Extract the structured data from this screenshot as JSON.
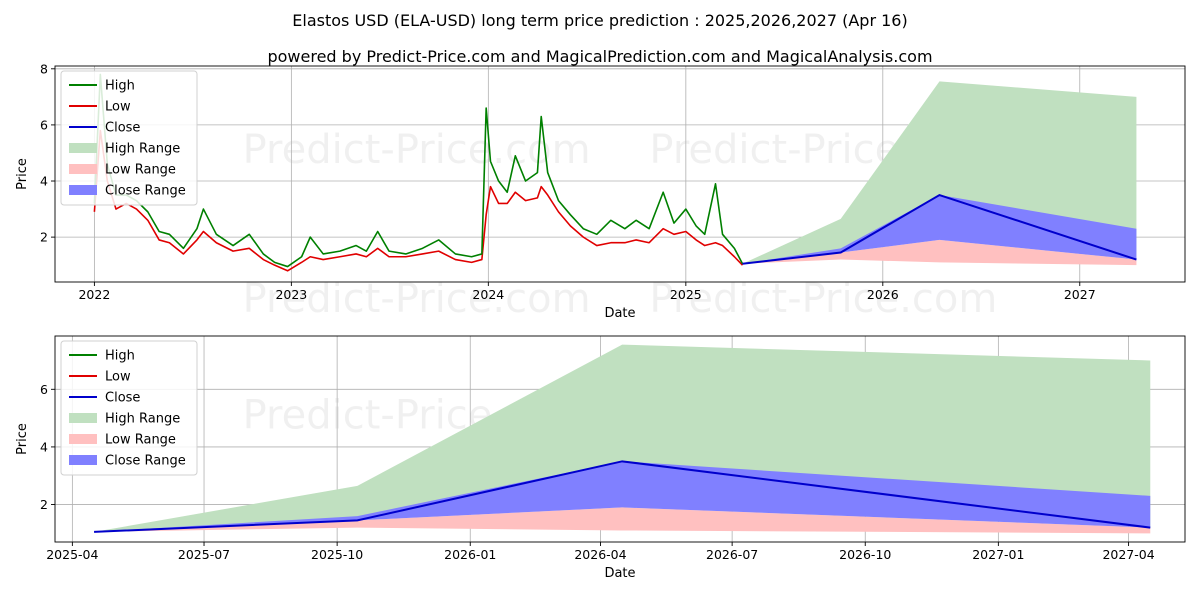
{
  "header": {
    "title": "Elastos USD (ELA-USD) long term price prediction : 2025,2026,2027 (Apr 16)",
    "subtitle": "powered by Predict-Price.com and MagicalPrediction.com and MagicalAnalysis.com"
  },
  "watermark": "Predict-Price.com",
  "colors": {
    "high": "#008000",
    "low": "#e00000",
    "close": "#0000cc",
    "high_range": "#c0e0c0",
    "low_range": "#ffc0c0",
    "close_range": "#8080ff",
    "grid": "#b0b0b0"
  },
  "chart_data": [
    {
      "type": "line",
      "xlabel": "Date",
      "ylabel": "Price",
      "xlim": [
        "2021-10-20",
        "2027-07-15"
      ],
      "ylim": [
        0.4,
        8.1
      ],
      "xticks": [
        {
          "date": "2022-01-01",
          "label": "2022"
        },
        {
          "date": "2023-01-01",
          "label": "2023"
        },
        {
          "date": "2024-01-01",
          "label": "2024"
        },
        {
          "date": "2025-01-01",
          "label": "2025"
        },
        {
          "date": "2026-01-01",
          "label": "2026"
        },
        {
          "date": "2027-01-01",
          "label": "2027"
        }
      ],
      "yticks": [
        2,
        4,
        6,
        8
      ],
      "grid": true,
      "legend": {
        "placement": "top-left",
        "entries": [
          {
            "label": "High",
            "kind": "line",
            "series": "high"
          },
          {
            "label": "Low",
            "kind": "line",
            "series": "low"
          },
          {
            "label": "Close",
            "kind": "line",
            "series": "close"
          },
          {
            "label": "High Range",
            "kind": "patch",
            "series": "high_range"
          },
          {
            "label": "Low Range",
            "kind": "patch",
            "series": "low_range"
          },
          {
            "label": "Close Range",
            "kind": "patch",
            "series": "close_range"
          }
        ]
      },
      "historical": {
        "high": [
          [
            "2022-01-01",
            3.2
          ],
          [
            "2022-01-12",
            7.8
          ],
          [
            "2022-01-25",
            4.6
          ],
          [
            "2022-02-10",
            3.5
          ],
          [
            "2022-03-01",
            3.5
          ],
          [
            "2022-03-20",
            3.3
          ],
          [
            "2022-04-10",
            2.9
          ],
          [
            "2022-05-01",
            2.2
          ],
          [
            "2022-05-20",
            2.1
          ],
          [
            "2022-06-15",
            1.6
          ],
          [
            "2022-07-10",
            2.3
          ],
          [
            "2022-07-22",
            3.0
          ],
          [
            "2022-08-15",
            2.1
          ],
          [
            "2022-09-15",
            1.7
          ],
          [
            "2022-10-15",
            2.1
          ],
          [
            "2022-11-10",
            1.4
          ],
          [
            "2022-12-01",
            1.1
          ],
          [
            "2022-12-25",
            0.95
          ],
          [
            "2023-01-20",
            1.3
          ],
          [
            "2023-02-05",
            2.0
          ],
          [
            "2023-03-01",
            1.4
          ],
          [
            "2023-04-01",
            1.5
          ],
          [
            "2023-05-01",
            1.7
          ],
          [
            "2023-05-20",
            1.5
          ],
          [
            "2023-06-10",
            2.2
          ],
          [
            "2023-07-01",
            1.5
          ],
          [
            "2023-08-01",
            1.4
          ],
          [
            "2023-09-01",
            1.6
          ],
          [
            "2023-10-01",
            1.9
          ],
          [
            "2023-11-01",
            1.4
          ],
          [
            "2023-12-01",
            1.3
          ],
          [
            "2023-12-20",
            1.4
          ],
          [
            "2023-12-28",
            6.6
          ],
          [
            "2024-01-05",
            4.7
          ],
          [
            "2024-01-20",
            4.0
          ],
          [
            "2024-02-05",
            3.6
          ],
          [
            "2024-02-20",
            4.9
          ],
          [
            "2024-03-10",
            4.0
          ],
          [
            "2024-04-01",
            4.3
          ],
          [
            "2024-04-08",
            6.3
          ],
          [
            "2024-04-20",
            4.3
          ],
          [
            "2024-05-10",
            3.3
          ],
          [
            "2024-06-01",
            2.8
          ],
          [
            "2024-06-25",
            2.3
          ],
          [
            "2024-07-20",
            2.1
          ],
          [
            "2024-08-15",
            2.6
          ],
          [
            "2024-09-10",
            2.3
          ],
          [
            "2024-10-01",
            2.6
          ],
          [
            "2024-10-25",
            2.3
          ],
          [
            "2024-11-20",
            3.6
          ],
          [
            "2024-12-10",
            2.5
          ],
          [
            "2025-01-01",
            3.0
          ],
          [
            "2025-01-20",
            2.4
          ],
          [
            "2025-02-05",
            2.1
          ],
          [
            "2025-02-25",
            3.9
          ],
          [
            "2025-03-10",
            2.1
          ],
          [
            "2025-04-01",
            1.6
          ],
          [
            "2025-04-16",
            1.05
          ]
        ],
        "low": [
          [
            "2022-01-01",
            2.9
          ],
          [
            "2022-01-12",
            5.8
          ],
          [
            "2022-01-25",
            4.0
          ],
          [
            "2022-02-10",
            3.0
          ],
          [
            "2022-03-01",
            3.2
          ],
          [
            "2022-03-20",
            3.0
          ],
          [
            "2022-04-10",
            2.6
          ],
          [
            "2022-05-01",
            1.9
          ],
          [
            "2022-05-20",
            1.8
          ],
          [
            "2022-06-15",
            1.4
          ],
          [
            "2022-07-10",
            1.9
          ],
          [
            "2022-07-22",
            2.2
          ],
          [
            "2022-08-15",
            1.8
          ],
          [
            "2022-09-15",
            1.5
          ],
          [
            "2022-10-15",
            1.6
          ],
          [
            "2022-11-10",
            1.2
          ],
          [
            "2022-12-01",
            1.0
          ],
          [
            "2022-12-25",
            0.8
          ],
          [
            "2023-01-20",
            1.1
          ],
          [
            "2023-02-05",
            1.3
          ],
          [
            "2023-03-01",
            1.2
          ],
          [
            "2023-04-01",
            1.3
          ],
          [
            "2023-05-01",
            1.4
          ],
          [
            "2023-05-20",
            1.3
          ],
          [
            "2023-06-10",
            1.6
          ],
          [
            "2023-07-01",
            1.3
          ],
          [
            "2023-08-01",
            1.3
          ],
          [
            "2023-09-01",
            1.4
          ],
          [
            "2023-10-01",
            1.5
          ],
          [
            "2023-11-01",
            1.2
          ],
          [
            "2023-12-01",
            1.1
          ],
          [
            "2023-12-20",
            1.2
          ],
          [
            "2023-12-28",
            2.8
          ],
          [
            "2024-01-05",
            3.8
          ],
          [
            "2024-01-20",
            3.2
          ],
          [
            "2024-02-05",
            3.2
          ],
          [
            "2024-02-20",
            3.6
          ],
          [
            "2024-03-10",
            3.3
          ],
          [
            "2024-04-01",
            3.4
          ],
          [
            "2024-04-08",
            3.8
          ],
          [
            "2024-04-20",
            3.5
          ],
          [
            "2024-05-10",
            2.9
          ],
          [
            "2024-06-01",
            2.4
          ],
          [
            "2024-06-25",
            2.0
          ],
          [
            "2024-07-20",
            1.7
          ],
          [
            "2024-08-15",
            1.8
          ],
          [
            "2024-09-10",
            1.8
          ],
          [
            "2024-10-01",
            1.9
          ],
          [
            "2024-10-25",
            1.8
          ],
          [
            "2024-11-20",
            2.3
          ],
          [
            "2024-12-10",
            2.1
          ],
          [
            "2025-01-01",
            2.2
          ],
          [
            "2025-01-20",
            1.9
          ],
          [
            "2025-02-05",
            1.7
          ],
          [
            "2025-02-25",
            1.8
          ],
          [
            "2025-03-10",
            1.7
          ],
          [
            "2025-04-01",
            1.3
          ],
          [
            "2025-04-16",
            1.0
          ]
        ]
      },
      "forecast": {
        "close": [
          [
            "2025-04-16",
            1.05
          ],
          [
            "2025-10-15",
            1.45
          ],
          [
            "2026-04-16",
            3.5
          ],
          [
            "2027-04-16",
            1.2
          ]
        ],
        "high_range": {
          "upper": [
            [
              "2025-04-16",
              1.05
            ],
            [
              "2025-10-15",
              2.65
            ],
            [
              "2026-04-16",
              7.55
            ],
            [
              "2027-04-16",
              7.0
            ]
          ],
          "lower": [
            [
              "2025-04-16",
              1.05
            ],
            [
              "2025-10-15",
              1.45
            ],
            [
              "2026-04-16",
              3.5
            ],
            [
              "2027-04-16",
              1.2
            ]
          ]
        },
        "close_range": {
          "upper": [
            [
              "2025-04-16",
              1.05
            ],
            [
              "2025-10-15",
              1.6
            ],
            [
              "2026-04-16",
              3.5
            ],
            [
              "2027-04-16",
              2.3
            ]
          ],
          "lower": [
            [
              "2025-04-16",
              1.05
            ],
            [
              "2025-10-15",
              1.45
            ],
            [
              "2026-04-16",
              1.9
            ],
            [
              "2027-04-16",
              1.2
            ]
          ]
        },
        "low_range": {
          "upper": [
            [
              "2025-04-16",
              1.05
            ],
            [
              "2025-10-15",
              1.45
            ],
            [
              "2026-04-16",
              1.9
            ],
            [
              "2027-04-16",
              1.2
            ]
          ],
          "lower": [
            [
              "2025-04-16",
              1.05
            ],
            [
              "2025-10-15",
              1.2
            ],
            [
              "2026-04-16",
              1.1
            ],
            [
              "2027-04-16",
              1.0
            ]
          ]
        }
      }
    },
    {
      "type": "line",
      "xlabel": "Date",
      "ylabel": "Price",
      "xlim": [
        "2025-03-20",
        "2027-05-10"
      ],
      "ylim": [
        0.7,
        7.85
      ],
      "xticks": [
        {
          "date": "2025-04-01",
          "label": "2025-04"
        },
        {
          "date": "2025-07-01",
          "label": "2025-07"
        },
        {
          "date": "2025-10-01",
          "label": "2025-10"
        },
        {
          "date": "2026-01-01",
          "label": "2026-01"
        },
        {
          "date": "2026-04-01",
          "label": "2026-04"
        },
        {
          "date": "2026-07-01",
          "label": "2026-07"
        },
        {
          "date": "2026-10-01",
          "label": "2026-10"
        },
        {
          "date": "2027-01-01",
          "label": "2027-01"
        },
        {
          "date": "2027-04-01",
          "label": "2027-04"
        }
      ],
      "yticks": [
        2,
        4,
        6
      ],
      "grid": true,
      "legend": {
        "placement": "top-left",
        "entries": [
          {
            "label": "High",
            "kind": "line",
            "series": "high"
          },
          {
            "label": "Low",
            "kind": "line",
            "series": "low"
          },
          {
            "label": "Close",
            "kind": "line",
            "series": "close"
          },
          {
            "label": "High Range",
            "kind": "patch",
            "series": "high_range"
          },
          {
            "label": "Low Range",
            "kind": "patch",
            "series": "low_range"
          },
          {
            "label": "Close Range",
            "kind": "patch",
            "series": "close_range"
          }
        ]
      },
      "forecast": {
        "close": [
          [
            "2025-04-16",
            1.05
          ],
          [
            "2025-10-15",
            1.45
          ],
          [
            "2026-04-16",
            3.5
          ],
          [
            "2027-04-16",
            1.2
          ]
        ],
        "high_range": {
          "upper": [
            [
              "2025-04-16",
              1.05
            ],
            [
              "2025-10-15",
              2.65
            ],
            [
              "2026-04-16",
              7.55
            ],
            [
              "2027-04-16",
              7.0
            ]
          ],
          "lower": [
            [
              "2025-04-16",
              1.05
            ],
            [
              "2025-10-15",
              1.45
            ],
            [
              "2026-04-16",
              3.5
            ],
            [
              "2027-04-16",
              1.2
            ]
          ]
        },
        "close_range": {
          "upper": [
            [
              "2025-04-16",
              1.05
            ],
            [
              "2025-10-15",
              1.6
            ],
            [
              "2026-04-16",
              3.5
            ],
            [
              "2027-04-16",
              2.3
            ]
          ],
          "lower": [
            [
              "2025-04-16",
              1.05
            ],
            [
              "2025-10-15",
              1.45
            ],
            [
              "2026-04-16",
              1.9
            ],
            [
              "2027-04-16",
              1.2
            ]
          ]
        },
        "low_range": {
          "upper": [
            [
              "2025-04-16",
              1.05
            ],
            [
              "2025-10-15",
              1.45
            ],
            [
              "2026-04-16",
              1.9
            ],
            [
              "2027-04-16",
              1.2
            ]
          ],
          "lower": [
            [
              "2025-04-16",
              1.05
            ],
            [
              "2025-10-15",
              1.2
            ],
            [
              "2026-04-16",
              1.1
            ],
            [
              "2027-04-16",
              1.0
            ]
          ]
        }
      }
    }
  ]
}
